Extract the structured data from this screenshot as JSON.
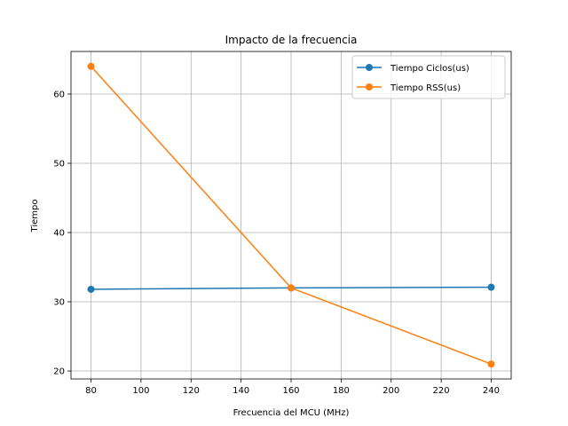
{
  "chart_data": {
    "type": "line",
    "title": "Impacto de la frecuencia",
    "xlabel": "Frecuencia del MCU (MHz)",
    "ylabel": "Tiempo",
    "x": [
      80,
      160,
      240
    ],
    "series": [
      {
        "name": "Tiempo Ciclos(us)",
        "values": [
          31.8,
          32.0,
          32.1
        ],
        "color": "#1f77b4"
      },
      {
        "name": "Tiempo RSS(us)",
        "values": [
          64.0,
          32.0,
          21.0
        ],
        "color": "#ff7f0e"
      }
    ],
    "xlim": [
      72,
      248
    ],
    "ylim": [
      18.85,
      66.15
    ],
    "xticks": [
      80,
      100,
      120,
      140,
      160,
      180,
      200,
      220,
      240
    ],
    "yticks": [
      20,
      30,
      40,
      50,
      60
    ],
    "grid": true,
    "legend_position": "top-right"
  }
}
